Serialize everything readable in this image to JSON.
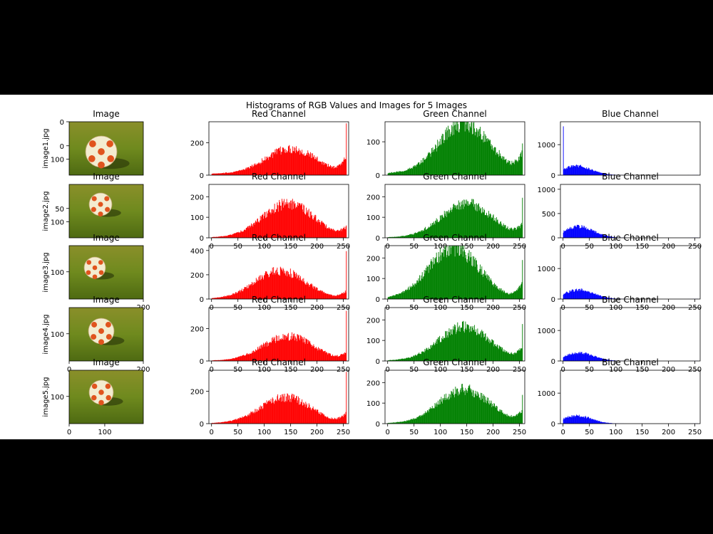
{
  "figure": {
    "suptitle": "Histograms of RGB Values and Images for 5 Images",
    "background": "#ffffff",
    "letterbox": "#000000"
  },
  "images": [
    {
      "label": "image1.jpg",
      "title": "Image",
      "y_ticks": [
        "0",
        "100"
      ],
      "y_ticks_top": "0",
      "x_ticks": []
    },
    {
      "label": "image2.jpg",
      "title": "Image",
      "y_ticks": [
        "50",
        "100"
      ],
      "x_ticks": []
    },
    {
      "label": "image3.jpg",
      "title": "Image",
      "y_ticks": [
        "100"
      ],
      "x_ticks": [
        "200"
      ]
    },
    {
      "label": "image4.jpg",
      "title": "Image",
      "y_ticks": [
        "100"
      ],
      "x_ticks": [
        "0",
        "200"
      ]
    },
    {
      "label": "image5.jpg",
      "title": "Image",
      "y_ticks": [
        "100"
      ],
      "x_ticks": [
        "0",
        "100"
      ]
    }
  ],
  "chart_data": [
    {
      "type": "bar",
      "title": "Red Channel",
      "row": 1,
      "color": "#ff0000",
      "xlim": [
        -5,
        260
      ],
      "ylim": [
        0,
        330
      ],
      "yticks": [
        0,
        200
      ],
      "xticks": [],
      "shape": {
        "peak": 150,
        "peak_value": 155,
        "spike": 320,
        "floor": 8,
        "tail": 95
      }
    },
    {
      "type": "bar",
      "title": "Green Channel",
      "row": 1,
      "color": "#008000",
      "xlim": [
        -5,
        260
      ],
      "ylim": [
        0,
        160
      ],
      "yticks": [
        0,
        100
      ],
      "xticks": [],
      "shape": {
        "peak": 145,
        "peak_value": 150,
        "spike": 95,
        "floor": 5,
        "tail": 50
      }
    },
    {
      "type": "bar",
      "title": "Blue Channel",
      "row": 1,
      "color": "#0000ff",
      "xlim": [
        -5,
        260
      ],
      "ylim": [
        0,
        1750
      ],
      "yticks": [
        0,
        1000
      ],
      "xticks": [],
      "shape": {
        "peak": 25,
        "peak_value": 300,
        "spike": 1600,
        "floor": 0,
        "tail": 10
      }
    },
    {
      "type": "bar",
      "title": "Red Channel",
      "row": 2,
      "color": "#ff0000",
      "xlim": [
        -5,
        260
      ],
      "ylim": [
        0,
        260
      ],
      "yticks": [
        0,
        100,
        200
      ],
      "xticks": [
        0,
        50,
        100,
        150,
        200,
        250
      ],
      "shape": {
        "peak": 145,
        "peak_value": 165,
        "spike": 60,
        "floor": 2,
        "tail": 40
      }
    },
    {
      "type": "bar",
      "title": "Green Channel",
      "row": 2,
      "color": "#008000",
      "xlim": [
        -5,
        260
      ],
      "ylim": [
        0,
        260
      ],
      "yticks": [
        0,
        100,
        200
      ],
      "xticks": [
        0,
        50,
        100,
        150,
        200,
        250
      ],
      "shape": {
        "peak": 150,
        "peak_value": 165,
        "spike": 195,
        "floor": 2,
        "tail": 50
      }
    },
    {
      "type": "bar",
      "title": "Blue Channel",
      "row": 2,
      "color": "#0000ff",
      "xlim": [
        -5,
        260
      ],
      "ylim": [
        0,
        1100
      ],
      "yticks": [
        0,
        500,
        1000
      ],
      "xticks": [
        0,
        50,
        100,
        150,
        200,
        250
      ],
      "shape": {
        "peak": 30,
        "peak_value": 230,
        "spike": 0,
        "floor": 0,
        "tail": 10
      }
    },
    {
      "type": "bar",
      "title": "Red Channel",
      "row": 3,
      "color": "#ff0000",
      "xlim": [
        -5,
        260
      ],
      "ylim": [
        0,
        440
      ],
      "yticks": [
        0,
        200,
        400
      ],
      "xticks": [
        0,
        50,
        100,
        150,
        200,
        250
      ],
      "shape": {
        "peak": 130,
        "peak_value": 230,
        "spike": 395,
        "floor": 2,
        "tail": 60
      }
    },
    {
      "type": "bar",
      "title": "Green Channel",
      "row": 3,
      "color": "#008000",
      "xlim": [
        -5,
        260
      ],
      "ylim": [
        0,
        260
      ],
      "yticks": [
        0,
        100,
        200
      ],
      "xticks": [
        0,
        50,
        100,
        150,
        200,
        250
      ],
      "shape": {
        "peak": 125,
        "peak_value": 245,
        "spike": 190,
        "floor": 2,
        "tail": 70
      }
    },
    {
      "type": "bar",
      "title": "Blue Channel",
      "row": 3,
      "color": "#0000ff",
      "xlim": [
        -5,
        260
      ],
      "ylim": [
        0,
        1750
      ],
      "yticks": [
        0,
        1000
      ],
      "xticks": [
        0,
        50,
        100,
        150,
        200,
        250
      ],
      "shape": {
        "peak": 30,
        "peak_value": 300,
        "spike": 0,
        "floor": 0,
        "tail": 10
      }
    },
    {
      "type": "bar",
      "title": "Red Channel",
      "row": 4,
      "color": "#ff0000",
      "xlim": [
        -5,
        260
      ],
      "ylim": [
        0,
        330
      ],
      "yticks": [
        0,
        200
      ],
      "xticks": [
        0,
        50,
        100,
        150,
        200,
        250
      ],
      "shape": {
        "peak": 145,
        "peak_value": 150,
        "spike": 310,
        "floor": 2,
        "tail": 40
      }
    },
    {
      "type": "bar",
      "title": "Green Channel",
      "row": 4,
      "color": "#008000",
      "xlim": [
        -5,
        260
      ],
      "ylim": [
        0,
        260
      ],
      "yticks": [
        0,
        100,
        200
      ],
      "xticks": [
        0,
        50,
        100,
        150,
        200,
        250
      ],
      "shape": {
        "peak": 145,
        "peak_value": 165,
        "spike": 180,
        "floor": 2,
        "tail": 55
      }
    },
    {
      "type": "bar",
      "title": "Blue Channel",
      "row": 4,
      "color": "#0000ff",
      "xlim": [
        -5,
        260
      ],
      "ylim": [
        0,
        1750
      ],
      "yticks": [
        0,
        1000
      ],
      "xticks": [
        0,
        50,
        100,
        150,
        200,
        250
      ],
      "shape": {
        "peak": 30,
        "peak_value": 270,
        "spike": 0,
        "floor": 0,
        "tail": 10
      }
    },
    {
      "type": "bar",
      "title": "Red Channel",
      "row": 5,
      "color": "#ff0000",
      "xlim": [
        -5,
        260
      ],
      "ylim": [
        0,
        330
      ],
      "yticks": [
        0,
        200
      ],
      "xticks": [
        0,
        50,
        100,
        150,
        200,
        250
      ],
      "shape": {
        "peak": 140,
        "peak_value": 160,
        "spike": 320,
        "floor": 2,
        "tail": 55
      }
    },
    {
      "type": "bar",
      "title": "Green Channel",
      "row": 5,
      "color": "#008000",
      "xlim": [
        -5,
        260
      ],
      "ylim": [
        0,
        260
      ],
      "yticks": [
        0,
        100,
        200
      ],
      "xticks": [
        0,
        50,
        100,
        150,
        200,
        250
      ],
      "shape": {
        "peak": 145,
        "peak_value": 165,
        "spike": 140,
        "floor": 2,
        "tail": 50
      }
    },
    {
      "type": "bar",
      "title": "Blue Channel",
      "row": 5,
      "color": "#0000ff",
      "xlim": [
        -5,
        260
      ],
      "ylim": [
        0,
        1750
      ],
      "yticks": [
        0,
        1000
      ],
      "xticks": [
        0,
        50,
        100,
        150,
        200,
        250
      ],
      "shape": {
        "peak": 25,
        "peak_value": 260,
        "spike": 0,
        "floor": 0,
        "tail": 10
      }
    }
  ]
}
